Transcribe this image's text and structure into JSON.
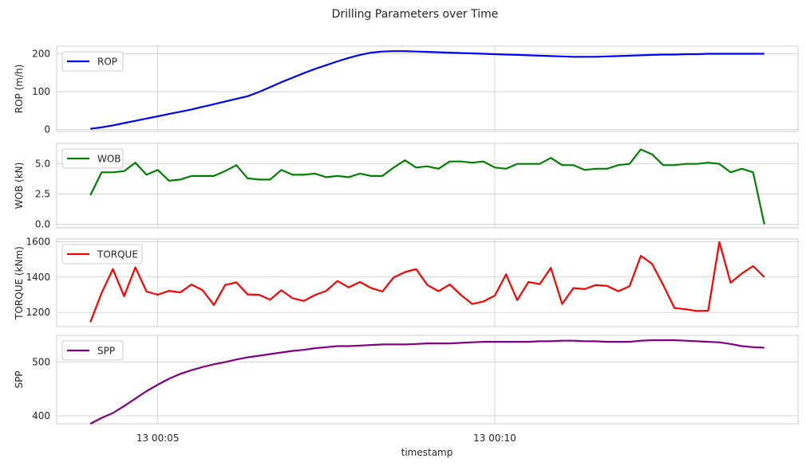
{
  "figure": {
    "title": "Drilling Parameters over Time",
    "xlabel": "timestamp"
  },
  "chart_data": {
    "type": "line",
    "x_unit": "minutes",
    "x_range": [
      3.5,
      14.5
    ],
    "x_ticks": [
      {
        "value": 5,
        "label": "13 00:05"
      },
      {
        "value": 10,
        "label": "13 00:10"
      }
    ],
    "x": [
      4,
      4.167,
      4.333,
      4.5,
      4.667,
      4.833,
      5,
      5.167,
      5.333,
      5.5,
      5.667,
      5.833,
      6,
      6.167,
      6.333,
      6.5,
      6.667,
      6.833,
      7,
      7.167,
      7.333,
      7.5,
      7.667,
      7.833,
      8,
      8.167,
      8.333,
      8.5,
      8.667,
      8.833,
      9,
      9.167,
      9.333,
      9.5,
      9.667,
      9.833,
      10,
      10.167,
      10.333,
      10.5,
      10.667,
      10.833,
      11,
      11.167,
      11.333,
      11.5,
      11.667,
      11.833,
      12,
      12.167,
      12.333,
      12.5,
      12.667,
      12.833,
      13,
      13.167,
      13.333,
      13.5,
      13.667,
      13.833,
      14
    ],
    "panels": [
      {
        "name": "ROP",
        "ylabel": "ROP (m/h)",
        "color": "#0000ff",
        "ylim": [
          -5,
          220
        ],
        "yticks": [
          0,
          100,
          200
        ],
        "values": [
          2,
          6,
          11,
          17,
          23,
          29,
          35,
          41,
          47,
          53,
          60,
          67,
          74,
          81,
          88,
          99,
          112,
          125,
          137,
          149,
          160,
          170,
          180,
          189,
          197,
          203,
          206,
          207,
          207,
          206,
          205,
          204,
          203,
          202,
          201,
          200,
          199,
          198,
          197,
          196,
          195,
          194,
          193,
          192,
          192,
          192,
          193,
          194,
          195,
          196,
          197,
          198,
          198,
          199,
          199,
          200,
          200,
          200,
          200,
          200,
          200
        ]
      },
      {
        "name": "WOB",
        "ylabel": "WOB (kN)",
        "color": "#008000",
        "ylim": [
          -0.3,
          6.7
        ],
        "yticks": [
          0.0,
          2.5,
          5.0
        ],
        "ytick_labels": [
          "0.0",
          "2.5",
          "5.0"
        ],
        "values": [
          2.4,
          4.3,
          4.3,
          4.4,
          5.1,
          4.1,
          4.5,
          3.6,
          3.7,
          4.0,
          4.0,
          4.0,
          4.4,
          4.9,
          3.8,
          3.7,
          3.7,
          4.5,
          4.1,
          4.1,
          4.2,
          3.9,
          4.0,
          3.9,
          4.2,
          4.0,
          4.0,
          4.7,
          5.3,
          4.7,
          4.8,
          4.6,
          5.2,
          5.2,
          5.1,
          5.2,
          4.7,
          4.6,
          5.0,
          5.0,
          5.0,
          5.5,
          4.9,
          4.9,
          4.5,
          4.6,
          4.6,
          4.9,
          5.0,
          6.2,
          5.8,
          4.9,
          4.9,
          5.0,
          5.0,
          5.1,
          5.0,
          4.3,
          4.6,
          4.3,
          0.0
        ]
      },
      {
        "name": "TORQUE",
        "ylabel": "TORQUE (kNm)",
        "color": "#ff0000",
        "ylim": [
          1120,
          1615
        ],
        "yticks": [
          1200,
          1400,
          1600
        ],
        "values": [
          1145,
          1310,
          1445,
          1292,
          1455,
          1318,
          1300,
          1322,
          1313,
          1358,
          1325,
          1242,
          1355,
          1370,
          1302,
          1300,
          1272,
          1325,
          1280,
          1265,
          1298,
          1322,
          1378,
          1342,
          1372,
          1338,
          1318,
          1398,
          1428,
          1445,
          1355,
          1320,
          1358,
          1298,
          1248,
          1262,
          1295,
          1415,
          1270,
          1372,
          1360,
          1452,
          1248,
          1338,
          1332,
          1355,
          1350,
          1320,
          1348,
          1520,
          1475,
          1355,
          1225,
          1218,
          1208,
          1210,
          1598,
          1368,
          1420,
          1462,
          1400
        ]
      },
      {
        "name": "SPP",
        "ylabel": "SPP",
        "color": "#800080",
        "ylim": [
          385,
          550
        ],
        "yticks": [
          400,
          500
        ],
        "values": [
          385,
          396,
          405,
          418,
          432,
          446,
          458,
          469,
          478,
          485,
          491,
          496,
          500,
          505,
          509,
          512,
          515,
          518,
          521,
          523,
          526,
          528,
          530,
          530,
          531,
          532,
          533,
          533,
          533,
          534,
          535,
          535,
          535,
          536,
          537,
          538,
          538,
          538,
          538,
          538,
          539,
          539,
          540,
          540,
          539,
          539,
          538,
          538,
          538,
          540,
          541,
          541,
          541,
          540,
          539,
          538,
          537,
          534,
          530,
          528,
          527
        ]
      }
    ]
  }
}
